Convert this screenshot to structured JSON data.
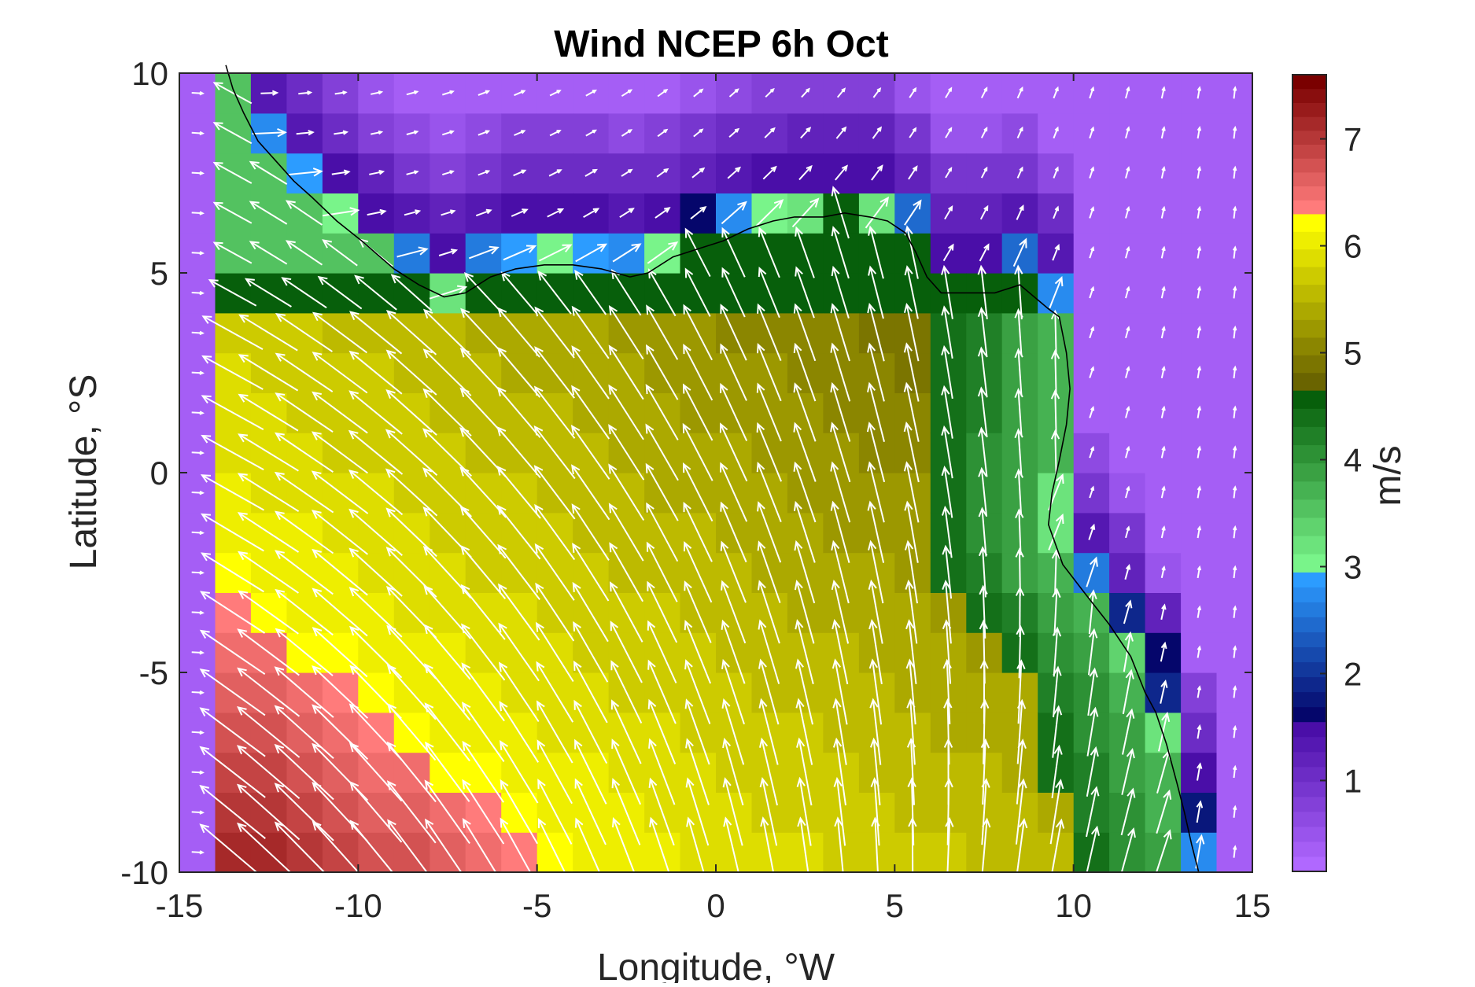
{
  "chart_data": {
    "type": "heatmap",
    "title": "Wind NCEP 6h Oct",
    "xlabel": "Longitude, °W",
    "ylabel": "Latitude, °S",
    "xlim": [
      -15,
      15
    ],
    "ylim": [
      -10,
      10
    ],
    "x_ticks": [
      "-15",
      "-10",
      "-5",
      "0",
      "5",
      "10",
      "15"
    ],
    "y_ticks": [
      "10",
      "5",
      "0",
      "-5",
      "-10"
    ],
    "colorbar": {
      "label": "m/s",
      "range": [
        0.15,
        7.6
      ],
      "ticks": [
        "1",
        "2",
        "3",
        "4",
        "5",
        "6",
        "7"
      ],
      "bands": [
        {
          "from": 0.15,
          "to": 1.55,
          "colors": [
            "#b068ff",
            "#4a0ea8"
          ],
          "name": "purple"
        },
        {
          "from": 1.55,
          "to": 2.95,
          "colors": [
            "#05066b",
            "#2c9cff"
          ],
          "name": "blue"
        },
        {
          "from": 2.95,
          "to": 4.65,
          "colors": [
            "#79f48a",
            "#075f0b"
          ],
          "name": "green"
        },
        {
          "from": 4.65,
          "to": 6.3,
          "colors": [
            "#6a6400",
            "#ffff00"
          ],
          "name": "olive-yellow"
        },
        {
          "from": 6.3,
          "to": 7.6,
          "colors": [
            "#ff7b7b",
            "#7a0000"
          ],
          "name": "red"
        }
      ]
    },
    "grid_spacing_deg": 1,
    "speed_field_note_values_m_s": {
      "southwest_max": 7.5,
      "central_ocean": 5.6,
      "coastal_land": 4.0,
      "northeast_inland": 0.8
    },
    "vector_color": "#ffffff",
    "coastline_color": "#000000"
  }
}
